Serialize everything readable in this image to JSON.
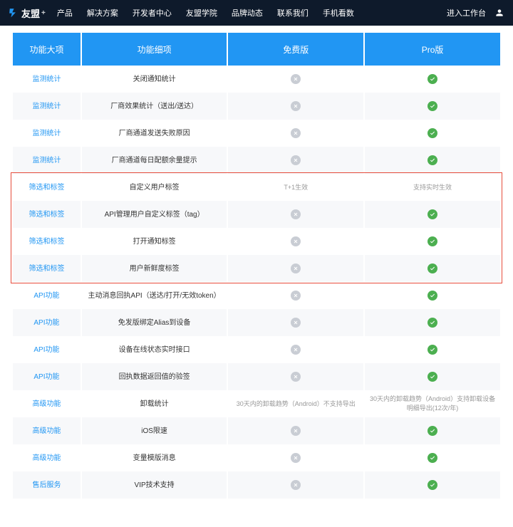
{
  "nav": {
    "brand": "友盟",
    "brand_suffix": "+",
    "items": [
      "产品",
      "解决方案",
      "开发者中心",
      "友盟学院",
      "品牌动态",
      "联系我们",
      "手机看数"
    ],
    "workspace": "进入工作台"
  },
  "table": {
    "headers": [
      "功能大项",
      "功能细项",
      "免费版",
      "Pro版"
    ],
    "rows": [
      {
        "cat": "监测统计",
        "feat": "关闭通知统计",
        "free": {
          "t": "x"
        },
        "pro": {
          "t": "c"
        }
      },
      {
        "cat": "监测统计",
        "feat": "厂商效果统计（送出/送达）",
        "free": {
          "t": "x"
        },
        "pro": {
          "t": "c"
        }
      },
      {
        "cat": "监测统计",
        "feat": "厂商通道发送失败原因",
        "free": {
          "t": "x"
        },
        "pro": {
          "t": "c"
        }
      },
      {
        "cat": "监测统计",
        "feat": "厂商通道每日配额余量提示",
        "free": {
          "t": "x"
        },
        "pro": {
          "t": "c"
        }
      },
      {
        "cat": "筛选和标签",
        "feat": "自定义用户标签",
        "free": {
          "t": "txt",
          "v": "T+1生效"
        },
        "pro": {
          "t": "txt",
          "v": "支持实时生效"
        }
      },
      {
        "cat": "筛选和标签",
        "feat": "API管理用户自定义标签（tag）",
        "free": {
          "t": "x"
        },
        "pro": {
          "t": "c"
        }
      },
      {
        "cat": "筛选和标签",
        "feat": "打开通知标签",
        "free": {
          "t": "x"
        },
        "pro": {
          "t": "c"
        }
      },
      {
        "cat": "筛选和标签",
        "feat": "用户新鲜度标签",
        "free": {
          "t": "x"
        },
        "pro": {
          "t": "c"
        }
      },
      {
        "cat": "API功能",
        "feat": "主动消息回执API（送达/打开/无效token）",
        "free": {
          "t": "x"
        },
        "pro": {
          "t": "c"
        }
      },
      {
        "cat": "API功能",
        "feat": "免发版绑定Alias到设备",
        "free": {
          "t": "x"
        },
        "pro": {
          "t": "c"
        }
      },
      {
        "cat": "API功能",
        "feat": "设备在线状态实时接口",
        "free": {
          "t": "x"
        },
        "pro": {
          "t": "c"
        }
      },
      {
        "cat": "API功能",
        "feat": "回执数据返回值的验签",
        "free": {
          "t": "x"
        },
        "pro": {
          "t": "c"
        }
      },
      {
        "cat": "高级功能",
        "feat": "卸载统计",
        "free": {
          "t": "txt",
          "v": "30天内的卸载趋势（Android）不支持导出"
        },
        "pro": {
          "t": "txt",
          "v": "30天内的卸载趋势（Android）支持卸载设备明细导出(12次/年)"
        }
      },
      {
        "cat": "高级功能",
        "feat": "iOS限速",
        "free": {
          "t": "x"
        },
        "pro": {
          "t": "c"
        }
      },
      {
        "cat": "高级功能",
        "feat": "变量模版消息",
        "free": {
          "t": "x"
        },
        "pro": {
          "t": "c"
        }
      },
      {
        "cat": "售后服务",
        "feat": "VIP技术支持",
        "free": {
          "t": "x"
        },
        "pro": {
          "t": "c"
        }
      }
    ],
    "highlight": {
      "start": 4,
      "end": 7
    }
  }
}
